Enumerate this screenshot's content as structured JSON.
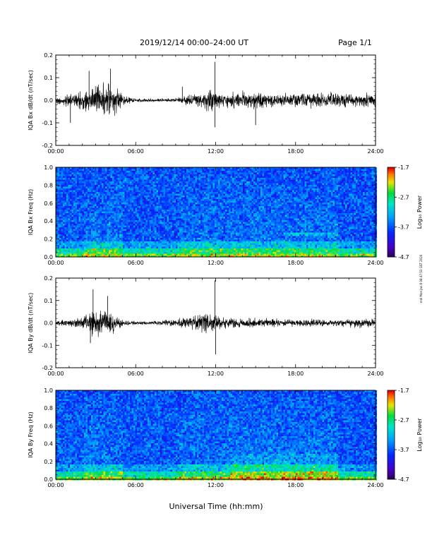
{
  "header": {
    "title": "2019/12/14  00:00–24:00 UT",
    "page": "Page 1/1"
  },
  "xlabel": "Universal Time (hh:mm)",
  "side_note": "mdl Mon Jan 6 08:47:53 GST 2020",
  "x_ticks": [
    "00:00",
    "06:00",
    "12:00",
    "18:00",
    "24:00"
  ],
  "chart_data": [
    {
      "type": "line",
      "id": "bx_dbdt",
      "ylabel": "IQA Bx dB/dt (nT/sec)",
      "xlim": [
        0,
        24
      ],
      "ylim": [
        -0.2,
        0.2
      ],
      "y_ticks": [
        "0.2",
        "0.1",
        "0.0",
        "-0.1",
        "-0.2"
      ],
      "y_tick_values": [
        0.2,
        0.1,
        0.0,
        -0.1,
        -0.2
      ],
      "series": [
        {
          "hours": [
            0,
            1,
            2,
            3,
            3.5,
            4,
            4.5,
            5,
            6,
            7,
            8,
            9,
            10,
            11,
            11.5,
            12,
            12.5,
            13,
            14,
            15,
            16,
            17,
            18,
            19,
            20,
            21,
            22,
            23,
            24
          ],
          "amplitude": [
            0.02,
            0.04,
            0.06,
            0.09,
            0.11,
            0.12,
            0.08,
            0.03,
            0.012,
            0.01,
            0.01,
            0.012,
            0.03,
            0.05,
            0.07,
            0.06,
            0.04,
            0.05,
            0.05,
            0.05,
            0.05,
            0.04,
            0.04,
            0.045,
            0.045,
            0.05,
            0.04,
            0.04,
            0.04
          ],
          "spikes": [
            [
              1.1,
              -0.1
            ],
            [
              2.5,
              0.13
            ],
            [
              4.1,
              0.14
            ],
            [
              11.95,
              0.17
            ],
            [
              11.95,
              -0.12
            ],
            [
              15.0,
              -0.11
            ],
            [
              9.5,
              0.06
            ]
          ]
        }
      ]
    },
    {
      "type": "heatmap",
      "id": "bx_spec",
      "ylabel": "IQA Bx Freq (Hz)",
      "xlim": [
        0,
        24
      ],
      "ylim": [
        0.0,
        1.0
      ],
      "y_ticks": [
        "1.0",
        "0.8",
        "0.6",
        "0.4",
        "0.2",
        "0.0"
      ],
      "y_tick_values": [
        1.0,
        0.8,
        0.6,
        0.4,
        0.2,
        0.0
      ],
      "colorbar": {
        "label": "Log₁₀ Power",
        "range": [
          -4.7,
          -1.7
        ],
        "ticks": [
          "-1.7",
          "-2.7",
          "-3.7",
          "-4.7"
        ],
        "tick_values": [
          -1.7,
          -2.7,
          -3.7,
          -4.7
        ]
      }
    },
    {
      "type": "line",
      "id": "by_dbdt",
      "ylabel": "IQA By dB/dt (nT/sec)",
      "xlim": [
        0,
        24
      ],
      "ylim": [
        -0.2,
        0.2
      ],
      "y_ticks": [
        "0.2",
        "0.1",
        "0.0",
        "-0.1",
        "-0.2"
      ],
      "y_tick_values": [
        0.2,
        0.1,
        0.0,
        -0.1,
        -0.2
      ],
      "series": [
        {
          "hours": [
            0,
            1,
            2,
            2.5,
            3,
            3.5,
            4,
            4.5,
            5,
            6,
            7,
            8,
            9,
            10,
            11,
            11.5,
            12,
            12.5,
            13,
            14,
            15,
            16,
            17,
            18,
            19,
            20,
            21,
            22,
            23,
            24
          ],
          "amplitude": [
            0.015,
            0.02,
            0.04,
            0.08,
            0.09,
            0.08,
            0.07,
            0.05,
            0.02,
            0.012,
            0.012,
            0.015,
            0.025,
            0.04,
            0.06,
            0.07,
            0.06,
            0.04,
            0.035,
            0.03,
            0.03,
            0.025,
            0.025,
            0.025,
            0.025,
            0.02,
            0.02,
            0.025,
            0.03,
            0.03
          ],
          "spikes": [
            [
              2.8,
              0.15
            ],
            [
              3.9,
              0.12
            ],
            [
              11.95,
              0.19
            ],
            [
              12.0,
              -0.14
            ],
            [
              2.6,
              -0.09
            ]
          ]
        }
      ]
    },
    {
      "type": "heatmap",
      "id": "by_spec",
      "ylabel": "IQA By Freq (Hz)",
      "xlim": [
        0,
        24
      ],
      "ylim": [
        0.0,
        1.0
      ],
      "y_ticks": [
        "1.0",
        "0.8",
        "0.6",
        "0.4",
        "0.2",
        "0.0"
      ],
      "y_tick_values": [
        1.0,
        0.8,
        0.6,
        0.4,
        0.2,
        0.0
      ],
      "colorbar": {
        "label": "Log₁₀ Power",
        "range": [
          -4.7,
          -1.7
        ],
        "ticks": [
          "-1.7",
          "-2.7",
          "-3.7",
          "-4.7"
        ],
        "tick_values": [
          -1.7,
          -2.7,
          -3.7,
          -4.7
        ]
      }
    }
  ]
}
